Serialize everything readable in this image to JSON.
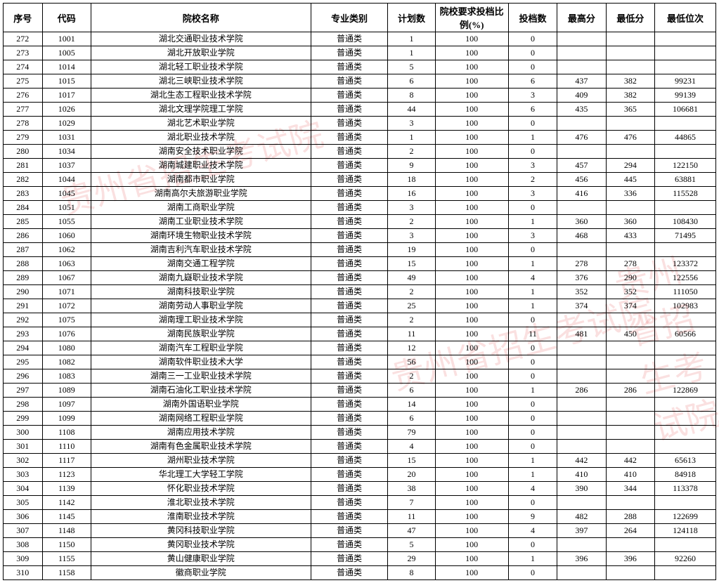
{
  "watermark_text": "贵州省招生考试院",
  "headers": {
    "seq": "序号",
    "code": "代码",
    "name": "院校名称",
    "category": "专业类别",
    "plan": "计划数",
    "ratio": "院校要求投档比例(%)",
    "filed": "投档数",
    "max": "最高分",
    "min": "最低分",
    "rank": "最低位次"
  },
  "rows": [
    {
      "seq": "272",
      "code": "1001",
      "name": "湖北交通职业技术学院",
      "category": "普通类",
      "plan": "1",
      "ratio": "100",
      "filed": "0",
      "max": "",
      "min": "",
      "rank": ""
    },
    {
      "seq": "273",
      "code": "1005",
      "name": "湖北开放职业学院",
      "category": "普通类",
      "plan": "1",
      "ratio": "100",
      "filed": "0",
      "max": "",
      "min": "",
      "rank": ""
    },
    {
      "seq": "274",
      "code": "1014",
      "name": "湖北轻工职业技术学院",
      "category": "普通类",
      "plan": "5",
      "ratio": "100",
      "filed": "0",
      "max": "",
      "min": "",
      "rank": ""
    },
    {
      "seq": "275",
      "code": "1015",
      "name": "湖北三峡职业技术学院",
      "category": "普通类",
      "plan": "6",
      "ratio": "100",
      "filed": "6",
      "max": "437",
      "min": "382",
      "rank": "99231"
    },
    {
      "seq": "276",
      "code": "1017",
      "name": "湖北生态工程职业技术学院",
      "category": "普通类",
      "plan": "8",
      "ratio": "100",
      "filed": "3",
      "max": "409",
      "min": "382",
      "rank": "99139"
    },
    {
      "seq": "277",
      "code": "1026",
      "name": "湖北文理学院理工学院",
      "category": "普通类",
      "plan": "44",
      "ratio": "100",
      "filed": "6",
      "max": "435",
      "min": "365",
      "rank": "106681"
    },
    {
      "seq": "278",
      "code": "1029",
      "name": "湖北艺术职业学院",
      "category": "普通类",
      "plan": "3",
      "ratio": "100",
      "filed": "0",
      "max": "",
      "min": "",
      "rank": ""
    },
    {
      "seq": "279",
      "code": "1031",
      "name": "湖北职业技术学院",
      "category": "普通类",
      "plan": "1",
      "ratio": "100",
      "filed": "1",
      "max": "476",
      "min": "476",
      "rank": "44865"
    },
    {
      "seq": "280",
      "code": "1034",
      "name": "湖南安全技术职业学院",
      "category": "普通类",
      "plan": "2",
      "ratio": "100",
      "filed": "0",
      "max": "",
      "min": "",
      "rank": ""
    },
    {
      "seq": "281",
      "code": "1037",
      "name": "湖南城建职业技术学院",
      "category": "普通类",
      "plan": "9",
      "ratio": "100",
      "filed": "3",
      "max": "457",
      "min": "294",
      "rank": "122150"
    },
    {
      "seq": "282",
      "code": "1044",
      "name": "湖南都市职业学院",
      "category": "普通类",
      "plan": "18",
      "ratio": "100",
      "filed": "2",
      "max": "456",
      "min": "445",
      "rank": "63881"
    },
    {
      "seq": "283",
      "code": "1045",
      "name": "湖南高尔夫旅游职业学院",
      "category": "普通类",
      "plan": "16",
      "ratio": "100",
      "filed": "3",
      "max": "416",
      "min": "336",
      "rank": "115528"
    },
    {
      "seq": "284",
      "code": "1051",
      "name": "湖南工商职业学院",
      "category": "普通类",
      "plan": "3",
      "ratio": "100",
      "filed": "0",
      "max": "",
      "min": "",
      "rank": ""
    },
    {
      "seq": "285",
      "code": "1055",
      "name": "湖南工业职业技术学院",
      "category": "普通类",
      "plan": "2",
      "ratio": "100",
      "filed": "1",
      "max": "360",
      "min": "360",
      "rank": "108430"
    },
    {
      "seq": "286",
      "code": "1060",
      "name": "湖南环境生物职业技术学院",
      "category": "普通类",
      "plan": "3",
      "ratio": "100",
      "filed": "3",
      "max": "468",
      "min": "433",
      "rank": "71495"
    },
    {
      "seq": "287",
      "code": "1062",
      "name": "湖南吉利汽车职业技术学院",
      "category": "普通类",
      "plan": "19",
      "ratio": "100",
      "filed": "0",
      "max": "",
      "min": "",
      "rank": ""
    },
    {
      "seq": "288",
      "code": "1063",
      "name": "湖南交通工程学院",
      "category": "普通类",
      "plan": "15",
      "ratio": "100",
      "filed": "1",
      "max": "278",
      "min": "278",
      "rank": "123372"
    },
    {
      "seq": "289",
      "code": "1067",
      "name": "湖南九嶷职业技术学院",
      "category": "普通类",
      "plan": "49",
      "ratio": "100",
      "filed": "4",
      "max": "376",
      "min": "290",
      "rank": "122556"
    },
    {
      "seq": "290",
      "code": "1071",
      "name": "湖南科技职业学院",
      "category": "普通类",
      "plan": "2",
      "ratio": "100",
      "filed": "1",
      "max": "352",
      "min": "352",
      "rank": "111050"
    },
    {
      "seq": "291",
      "code": "1072",
      "name": "湖南劳动人事职业学院",
      "category": "普通类",
      "plan": "25",
      "ratio": "100",
      "filed": "1",
      "max": "374",
      "min": "374",
      "rank": "102983"
    },
    {
      "seq": "292",
      "code": "1075",
      "name": "湖南理工职业技术学院",
      "category": "普通类",
      "plan": "2",
      "ratio": "100",
      "filed": "0",
      "max": "",
      "min": "",
      "rank": ""
    },
    {
      "seq": "293",
      "code": "1076",
      "name": "湖南民族职业学院",
      "category": "普通类",
      "plan": "11",
      "ratio": "100",
      "filed": "11",
      "max": "481",
      "min": "450",
      "rank": "60566"
    },
    {
      "seq": "294",
      "code": "1080",
      "name": "湖南汽车工程职业学院",
      "category": "普通类",
      "plan": "12",
      "ratio": "100",
      "filed": "0",
      "max": "",
      "min": "",
      "rank": ""
    },
    {
      "seq": "295",
      "code": "1082",
      "name": "湖南软件职业技术大学",
      "category": "普通类",
      "plan": "56",
      "ratio": "100",
      "filed": "0",
      "max": "",
      "min": "",
      "rank": ""
    },
    {
      "seq": "296",
      "code": "1083",
      "name": "湖南三一工业职业技术学院",
      "category": "普通类",
      "plan": "2",
      "ratio": "100",
      "filed": "0",
      "max": "",
      "min": "",
      "rank": ""
    },
    {
      "seq": "297",
      "code": "1089",
      "name": "湖南石油化工职业技术学院",
      "category": "普通类",
      "plan": "6",
      "ratio": "100",
      "filed": "1",
      "max": "286",
      "min": "286",
      "rank": "122869"
    },
    {
      "seq": "298",
      "code": "1097",
      "name": "湖南外国语职业学院",
      "category": "普通类",
      "plan": "14",
      "ratio": "100",
      "filed": "0",
      "max": "",
      "min": "",
      "rank": ""
    },
    {
      "seq": "299",
      "code": "1099",
      "name": "湖南网络工程职业学院",
      "category": "普通类",
      "plan": "6",
      "ratio": "100",
      "filed": "0",
      "max": "",
      "min": "",
      "rank": ""
    },
    {
      "seq": "300",
      "code": "1108",
      "name": "湖南应用技术学院",
      "category": "普通类",
      "plan": "79",
      "ratio": "100",
      "filed": "0",
      "max": "",
      "min": "",
      "rank": ""
    },
    {
      "seq": "301",
      "code": "1110",
      "name": "湖南有色金属职业技术学院",
      "category": "普通类",
      "plan": "4",
      "ratio": "100",
      "filed": "0",
      "max": "",
      "min": "",
      "rank": ""
    },
    {
      "seq": "302",
      "code": "1117",
      "name": "湖州职业技术学院",
      "category": "普通类",
      "plan": "15",
      "ratio": "100",
      "filed": "1",
      "max": "442",
      "min": "442",
      "rank": "65613"
    },
    {
      "seq": "303",
      "code": "1123",
      "name": "华北理工大学轻工学院",
      "category": "普通类",
      "plan": "20",
      "ratio": "100",
      "filed": "1",
      "max": "410",
      "min": "410",
      "rank": "84918"
    },
    {
      "seq": "304",
      "code": "1139",
      "name": "怀化职业技术学院",
      "category": "普通类",
      "plan": "38",
      "ratio": "100",
      "filed": "4",
      "max": "390",
      "min": "344",
      "rank": "113378"
    },
    {
      "seq": "305",
      "code": "1142",
      "name": "淮北职业技术学院",
      "category": "普通类",
      "plan": "7",
      "ratio": "100",
      "filed": "0",
      "max": "",
      "min": "",
      "rank": ""
    },
    {
      "seq": "306",
      "code": "1145",
      "name": "淮南职业技术学院",
      "category": "普通类",
      "plan": "11",
      "ratio": "100",
      "filed": "9",
      "max": "482",
      "min": "288",
      "rank": "122699"
    },
    {
      "seq": "307",
      "code": "1148",
      "name": "黄冈科技职业学院",
      "category": "普通类",
      "plan": "47",
      "ratio": "100",
      "filed": "4",
      "max": "397",
      "min": "264",
      "rank": "124118"
    },
    {
      "seq": "308",
      "code": "1150",
      "name": "黄冈职业技术学院",
      "category": "普通类",
      "plan": "5",
      "ratio": "100",
      "filed": "0",
      "max": "",
      "min": "",
      "rank": ""
    },
    {
      "seq": "309",
      "code": "1155",
      "name": "黄山健康职业学院",
      "category": "普通类",
      "plan": "29",
      "ratio": "100",
      "filed": "1",
      "max": "396",
      "min": "396",
      "rank": "92260"
    },
    {
      "seq": "310",
      "code": "1158",
      "name": "徽商职业学院",
      "category": "普通类",
      "plan": "8",
      "ratio": "100",
      "filed": "0",
      "max": "",
      "min": "",
      "rank": ""
    }
  ]
}
